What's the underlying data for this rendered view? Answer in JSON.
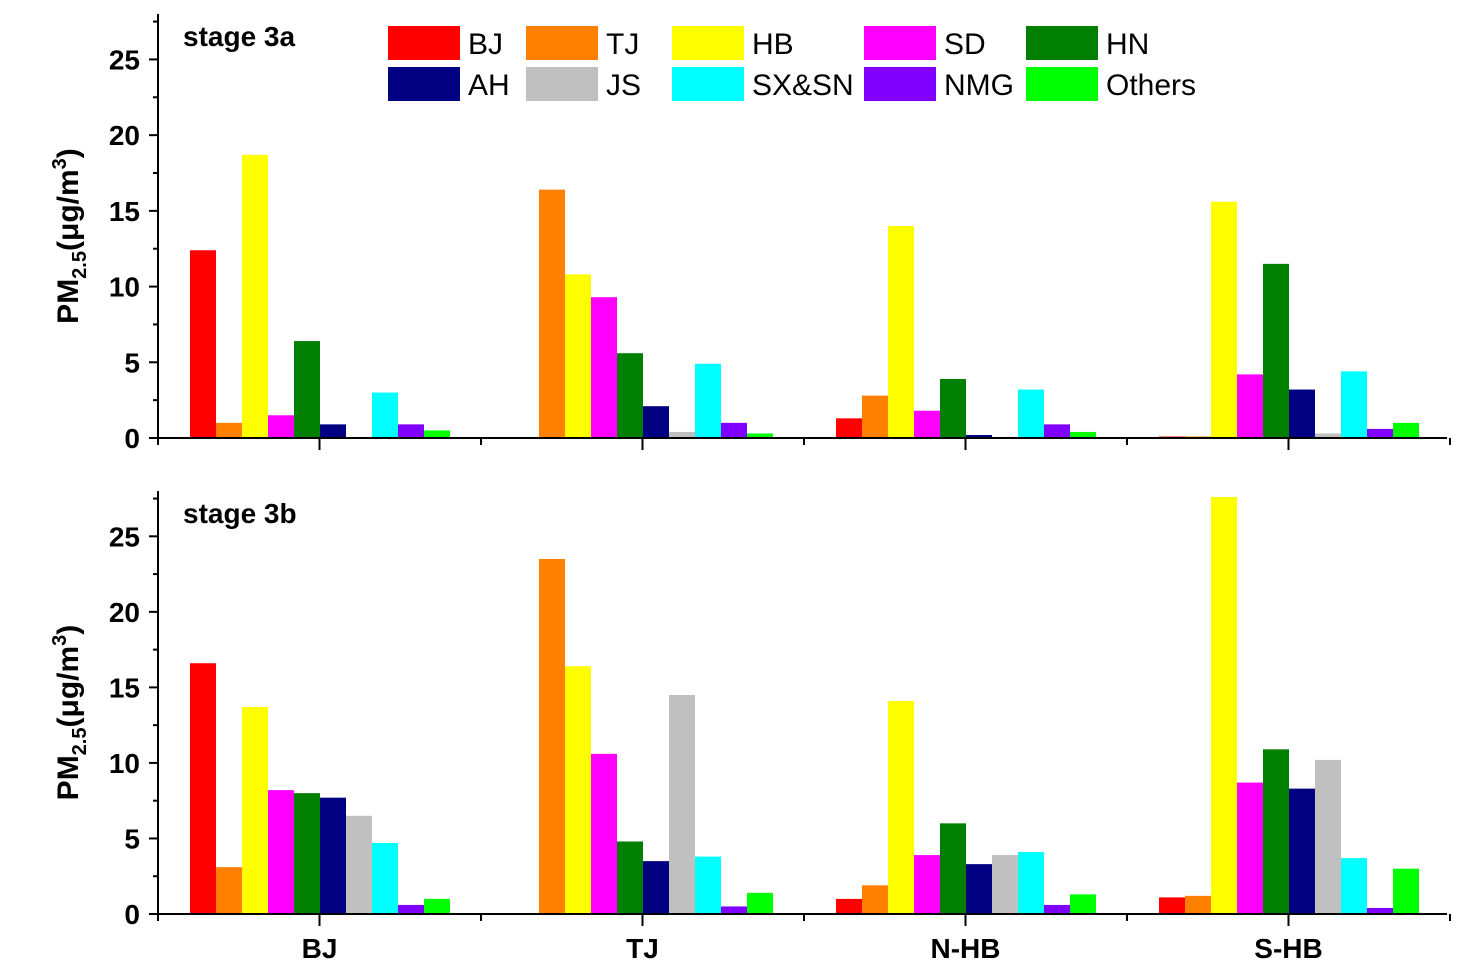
{
  "chart_data": [
    {
      "type": "bar",
      "panel_label": "stage 3a",
      "ylabel": {
        "main": "PM",
        "sub": "2.5",
        "unit": "(μg/m",
        "sup": "3",
        "close": ")"
      },
      "ylim": [
        0,
        28
      ],
      "yticks": [
        "0",
        "5",
        "10",
        "15",
        "20",
        "25"
      ],
      "categories": [
        "BJ",
        "TJ",
        "N-HB",
        "S-HB"
      ],
      "series": [
        {
          "name": "BJ",
          "color": "#ff0000",
          "values": [
            12.4,
            0.05,
            1.3,
            0.1
          ]
        },
        {
          "name": "TJ",
          "color": "#ff7f00",
          "values": [
            1.0,
            16.4,
            2.8,
            0.1
          ]
        },
        {
          "name": "HB",
          "color": "#ffff00",
          "values": [
            18.7,
            10.8,
            14.0,
            15.6
          ]
        },
        {
          "name": "SD",
          "color": "#ff00ff",
          "values": [
            1.5,
            9.3,
            1.8,
            4.2
          ]
        },
        {
          "name": "HN",
          "color": "#007f00",
          "values": [
            6.4,
            5.6,
            3.9,
            11.5
          ]
        },
        {
          "name": "AH",
          "color": "#000080",
          "values": [
            0.9,
            2.1,
            0.2,
            3.2
          ]
        },
        {
          "name": "JS",
          "color": "#c0c0c0",
          "values": [
            0.0,
            0.4,
            0.0,
            0.3
          ]
        },
        {
          "name": "SX&SN",
          "color": "#00ffff",
          "values": [
            3.0,
            4.9,
            3.2,
            4.4
          ]
        },
        {
          "name": "NMG",
          "color": "#8000ff",
          "values": [
            0.9,
            1.0,
            0.9,
            0.6
          ]
        },
        {
          "name": "Others",
          "color": "#00ff00",
          "values": [
            0.5,
            0.3,
            0.4,
            1.0
          ]
        }
      ]
    },
    {
      "type": "bar",
      "panel_label": "stage 3b",
      "ylabel": {
        "main": "PM",
        "sub": "2.5",
        "unit": "(μg/m",
        "sup": "3",
        "close": ")"
      },
      "ylim": [
        0,
        28
      ],
      "yticks": [
        "0",
        "5",
        "10",
        "15",
        "20",
        "25"
      ],
      "categories": [
        "BJ",
        "TJ",
        "N-HB",
        "S-HB"
      ],
      "series": [
        {
          "name": "BJ",
          "color": "#ff0000",
          "values": [
            16.6,
            0.05,
            1.0,
            1.1
          ]
        },
        {
          "name": "TJ",
          "color": "#ff7f00",
          "values": [
            3.1,
            23.5,
            1.9,
            1.2
          ]
        },
        {
          "name": "HB",
          "color": "#ffff00",
          "values": [
            13.7,
            16.4,
            14.1,
            27.6
          ]
        },
        {
          "name": "SD",
          "color": "#ff00ff",
          "values": [
            8.2,
            10.6,
            3.9,
            8.7
          ]
        },
        {
          "name": "HN",
          "color": "#007f00",
          "values": [
            8.0,
            4.8,
            6.0,
            10.9
          ]
        },
        {
          "name": "AH",
          "color": "#000080",
          "values": [
            7.7,
            3.5,
            3.3,
            8.3
          ]
        },
        {
          "name": "JS",
          "color": "#c0c0c0",
          "values": [
            6.5,
            14.5,
            3.9,
            10.2
          ]
        },
        {
          "name": "SX&SN",
          "color": "#00ffff",
          "values": [
            4.7,
            3.8,
            4.1,
            3.7
          ]
        },
        {
          "name": "NMG",
          "color": "#8000ff",
          "values": [
            0.6,
            0.5,
            0.6,
            0.4
          ]
        },
        {
          "name": "Others",
          "color": "#00ff00",
          "values": [
            1.0,
            1.4,
            1.3,
            3.0
          ]
        }
      ]
    }
  ],
  "legend_placement": "top-right"
}
